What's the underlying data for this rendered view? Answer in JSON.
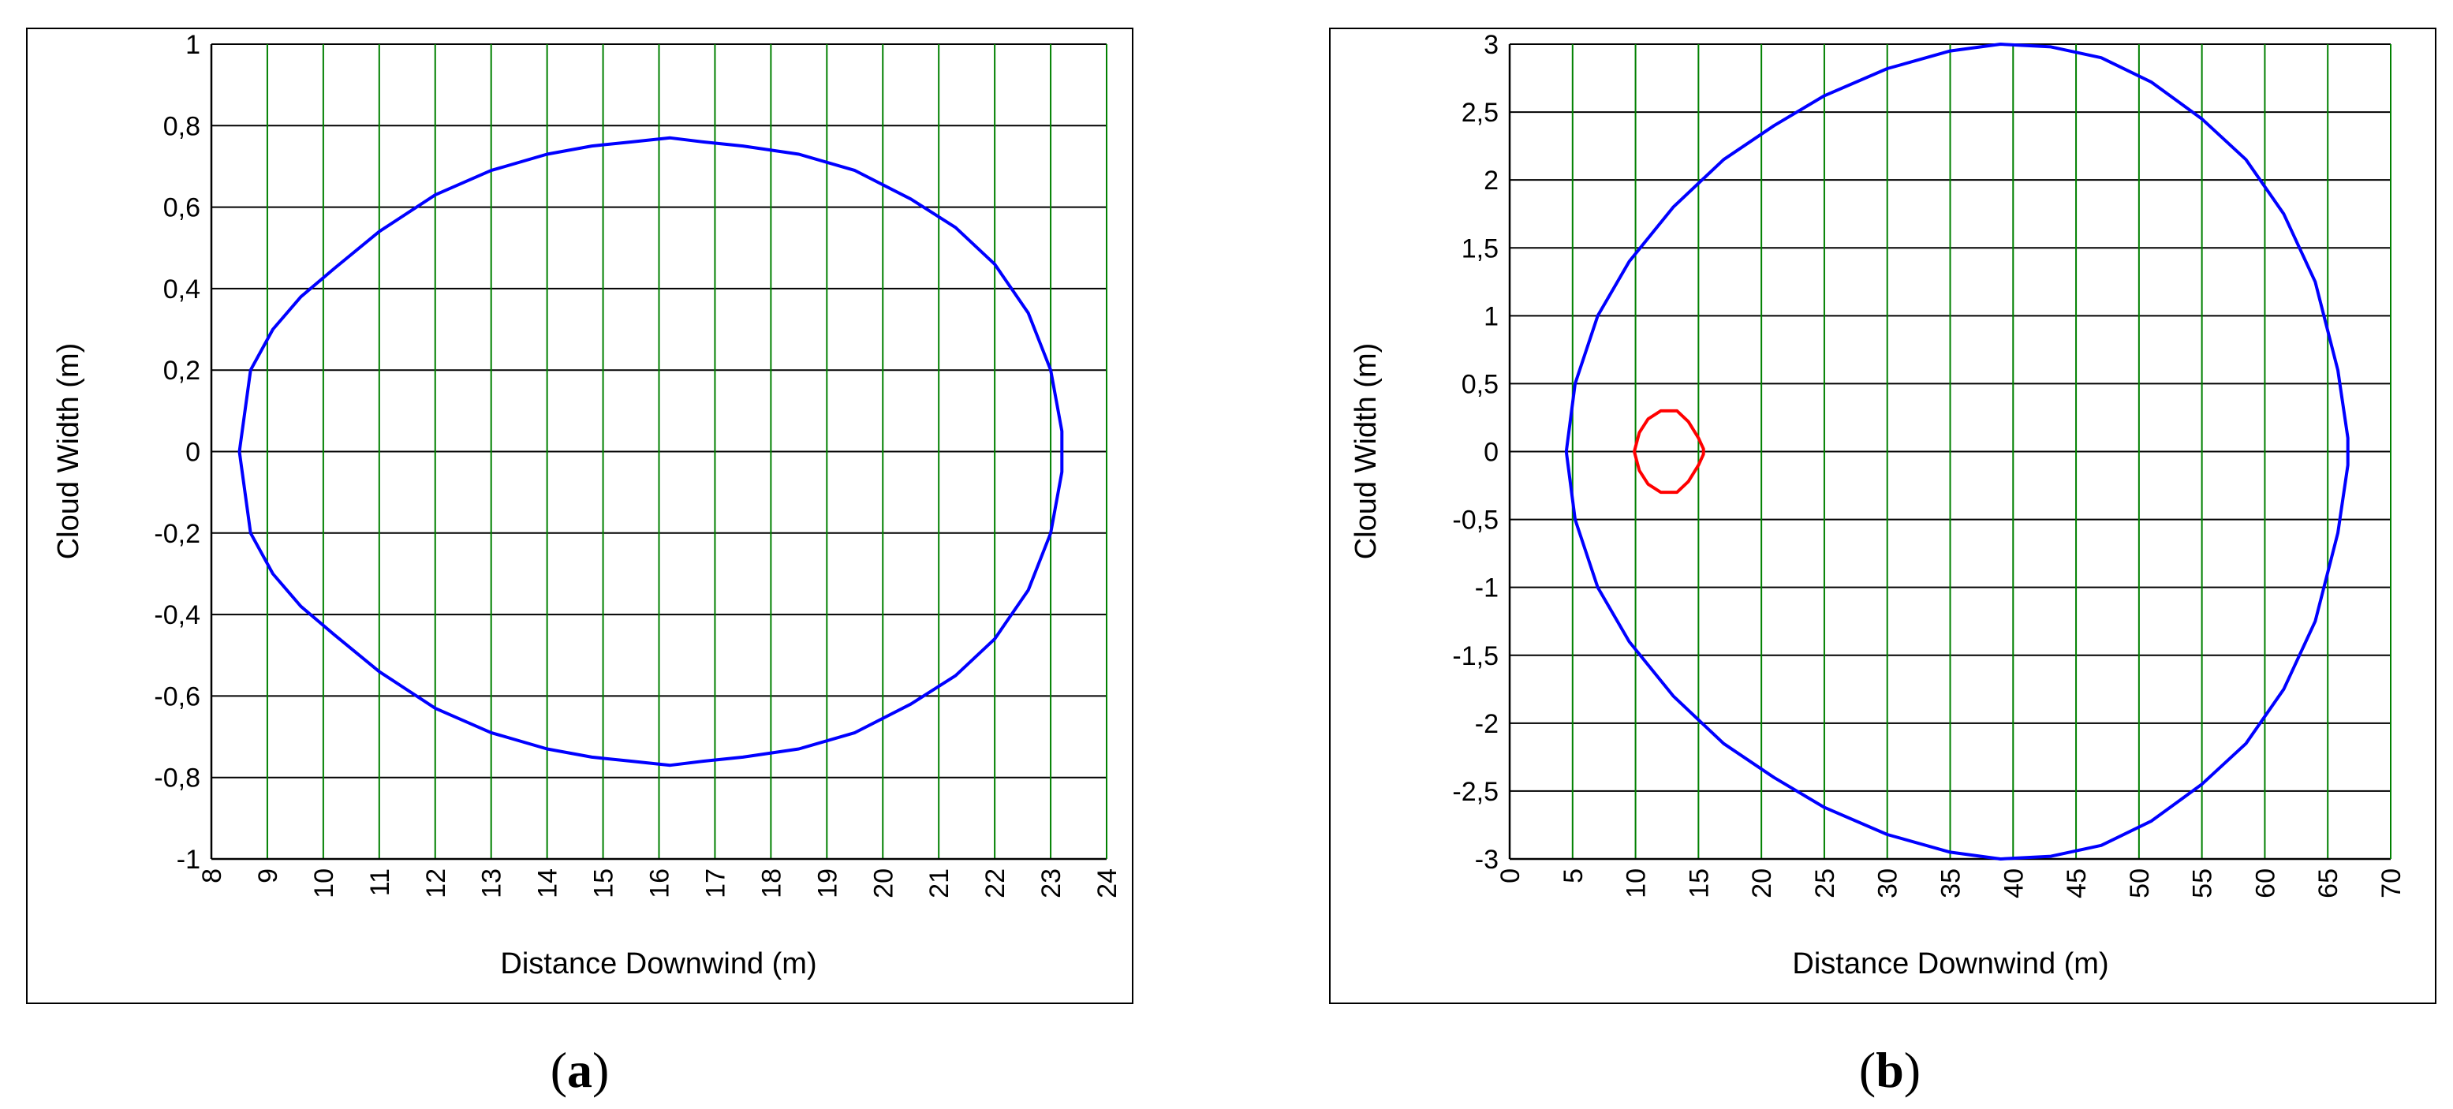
{
  "chart_data": [
    {
      "id": "a",
      "type": "line",
      "panel_label": "a",
      "xlabel": "Distance Downwind (m)",
      "ylabel": "Cloud Width (m)",
      "xlim": [
        8,
        24
      ],
      "ylim": [
        -1,
        1
      ],
      "xticks": [
        8,
        9,
        10,
        11,
        12,
        13,
        14,
        15,
        16,
        17,
        18,
        19,
        20,
        21,
        22,
        23,
        24
      ],
      "yticks": [
        -1,
        -0.8,
        -0.6,
        -0.4,
        -0.2,
        0,
        0.2,
        0.4,
        0.6,
        0.8,
        1
      ],
      "xtick_labels": [
        "8",
        "9",
        "10",
        "11",
        "12",
        "13",
        "14",
        "15",
        "16",
        "17",
        "18",
        "19",
        "20",
        "21",
        "22",
        "23",
        "24"
      ],
      "ytick_labels": [
        "-1",
        "-0,8",
        "-0,6",
        "-0,4",
        "-0,2",
        "0",
        "0,2",
        "0,4",
        "0,6",
        "0,8",
        "1"
      ],
      "grid": true,
      "series": [
        {
          "color": "#0000ff",
          "x": [
            8.5,
            8.7,
            9.1,
            9.6,
            10.2,
            11.0,
            12.0,
            13.0,
            14.0,
            14.8,
            15.5,
            16.2,
            16.8,
            17.5,
            18.5,
            19.5,
            20.5,
            21.3,
            22.0,
            22.6,
            23.0,
            23.2,
            23.2,
            23.0,
            22.6,
            22.0,
            21.3,
            20.5,
            19.5,
            18.5,
            17.5,
            16.8,
            16.2,
            15.5,
            14.8,
            14.0,
            13.0,
            12.0,
            11.0,
            10.2,
            9.6,
            9.1,
            8.7,
            8.5
          ],
          "y": [
            0.0,
            0.2,
            0.3,
            0.38,
            0.45,
            0.54,
            0.63,
            0.69,
            0.73,
            0.75,
            0.76,
            0.77,
            0.76,
            0.75,
            0.73,
            0.69,
            0.62,
            0.55,
            0.46,
            0.34,
            0.2,
            0.05,
            -0.05,
            -0.2,
            -0.34,
            -0.46,
            -0.55,
            -0.62,
            -0.69,
            -0.73,
            -0.75,
            -0.76,
            -0.77,
            -0.76,
            -0.75,
            -0.73,
            -0.69,
            -0.63,
            -0.54,
            -0.45,
            -0.38,
            -0.3,
            -0.2,
            0.0
          ]
        }
      ]
    },
    {
      "id": "b",
      "type": "line",
      "panel_label": "b",
      "xlabel": "Distance Downwind (m)",
      "ylabel": "Cloud Width (m)",
      "xlim": [
        0,
        70
      ],
      "ylim": [
        -3,
        3
      ],
      "xticks": [
        0,
        5,
        10,
        15,
        20,
        25,
        30,
        35,
        40,
        45,
        50,
        55,
        60,
        65,
        70
      ],
      "yticks": [
        -3,
        -2.5,
        -2,
        -1.5,
        -1,
        -0.5,
        0,
        0.5,
        1,
        1.5,
        2,
        2.5,
        3
      ],
      "xtick_labels": [
        "0",
        "5",
        "10",
        "15",
        "20",
        "25",
        "30",
        "35",
        "40",
        "45",
        "50",
        "55",
        "60",
        "65",
        "70"
      ],
      "ytick_labels": [
        "-3",
        "-2,5",
        "-2",
        "-1,5",
        "-1",
        "-0,5",
        "0",
        "0,5",
        "1",
        "1,5",
        "2",
        "2,5",
        "3"
      ],
      "grid": true,
      "series": [
        {
          "color": "#0000ff",
          "x": [
            4.5,
            5.2,
            7,
            9.5,
            13,
            17,
            21,
            25,
            30,
            35,
            39,
            43,
            47,
            51,
            55,
            58.5,
            61.5,
            64,
            65.8,
            66.6,
            66.6,
            65.8,
            64,
            61.5,
            58.5,
            55,
            51,
            47,
            43,
            39,
            35,
            30,
            25,
            21,
            17,
            13,
            9.5,
            7,
            5.2,
            4.5
          ],
          "y": [
            0.0,
            0.5,
            1.0,
            1.4,
            1.8,
            2.15,
            2.4,
            2.62,
            2.82,
            2.95,
            3.0,
            2.98,
            2.9,
            2.72,
            2.45,
            2.15,
            1.75,
            1.25,
            0.6,
            0.1,
            -0.1,
            -0.6,
            -1.25,
            -1.75,
            -2.15,
            -2.45,
            -2.72,
            -2.9,
            -2.98,
            -3.0,
            -2.95,
            -2.82,
            -2.62,
            -2.4,
            -2.15,
            -1.8,
            -1.4,
            -1.0,
            -0.5,
            0.0
          ]
        },
        {
          "color": "#ff0000",
          "x": [
            9.9,
            10.3,
            11.0,
            12.0,
            13.3,
            14.2,
            15.0,
            15.4,
            15.4,
            15.0,
            14.2,
            13.3,
            12.0,
            11.0,
            10.3,
            9.9
          ],
          "y": [
            0.0,
            0.14,
            0.24,
            0.3,
            0.3,
            0.22,
            0.1,
            0.02,
            -0.02,
            -0.1,
            -0.22,
            -0.3,
            -0.3,
            -0.24,
            -0.14,
            0.0
          ]
        }
      ]
    }
  ]
}
